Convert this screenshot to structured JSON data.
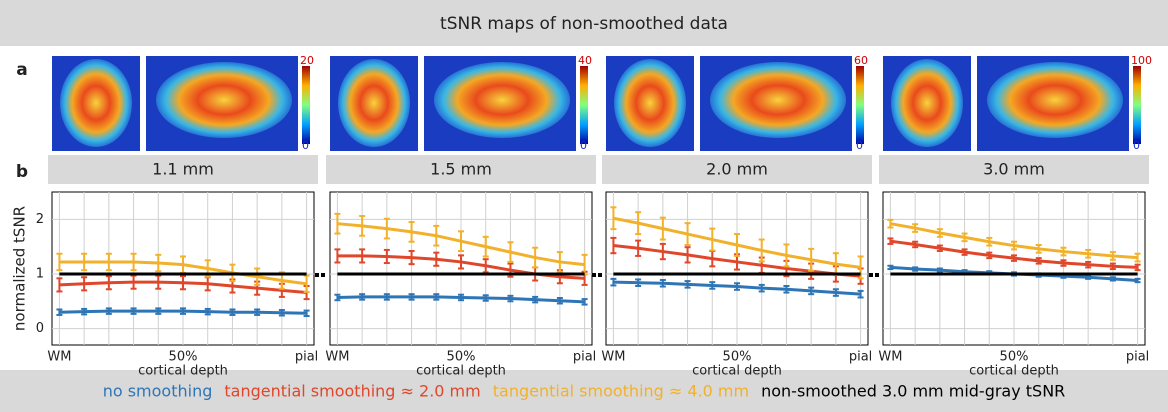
{
  "header": "tSNR maps of non-smoothed data",
  "panel_labels": [
    "a",
    "b"
  ],
  "colorbars": [
    {
      "max": 20,
      "min": 0
    },
    {
      "max": 40,
      "min": 0
    },
    {
      "max": 60,
      "min": 0
    },
    {
      "max": 100,
      "min": 0
    }
  ],
  "legend": [
    {
      "name": "no smoothing",
      "color": "#2e75b6"
    },
    {
      "name": "tangential smoothing ≈ 2.0 mm",
      "color": "#e0472a"
    },
    {
      "name": "tangential smoothing ≈ 4.0 mm",
      "color": "#f2b12a"
    },
    {
      "name": "non-smoothed 3.0 mm mid-gray tSNR",
      "color": "#000000"
    }
  ],
  "chart_data": [
    {
      "type": "line",
      "title": "1.1 mm",
      "ylabel": "normalized tSNR",
      "xlabel": "cortical depth",
      "show_ytick_labels": true,
      "x": [
        0,
        10,
        20,
        30,
        40,
        50,
        60,
        70,
        80,
        90,
        100
      ],
      "xlim": [
        -3,
        103
      ],
      "xticks": [
        {
          "value": 0,
          "label": "WM"
        },
        {
          "value": 50,
          "label": "50%"
        },
        {
          "value": 100,
          "label": "pial"
        }
      ],
      "ylim": [
        -0.3,
        2.5
      ],
      "yticks": [
        0,
        1,
        2
      ],
      "grid": true,
      "series": [
        {
          "values": [
            0.3,
            0.31,
            0.32,
            0.32,
            0.32,
            0.32,
            0.31,
            0.3,
            0.3,
            0.29,
            0.28
          ],
          "errors": [
            0.05,
            0.05,
            0.05,
            0.05,
            0.05,
            0.05,
            0.05,
            0.05,
            0.05,
            0.05,
            0.05
          ]
        },
        {
          "values": [
            0.8,
            0.82,
            0.84,
            0.85,
            0.85,
            0.84,
            0.82,
            0.78,
            0.74,
            0.7,
            0.66
          ],
          "errors": [
            0.12,
            0.12,
            0.12,
            0.12,
            0.12,
            0.12,
            0.12,
            0.12,
            0.12,
            0.12,
            0.12
          ]
        },
        {
          "values": [
            1.22,
            1.22,
            1.22,
            1.22,
            1.2,
            1.17,
            1.1,
            1.02,
            0.95,
            0.88,
            0.82
          ],
          "errors": [
            0.15,
            0.15,
            0.15,
            0.15,
            0.15,
            0.15,
            0.15,
            0.15,
            0.15,
            0.15,
            0.15
          ]
        },
        {
          "values": [
            1,
            1,
            1,
            1,
            1,
            1,
            1,
            1,
            1,
            1,
            1
          ]
        }
      ]
    },
    {
      "type": "line",
      "title": "1.5 mm",
      "xlabel": "cortical depth",
      "show_ytick_labels": false,
      "x": [
        0,
        10,
        20,
        30,
        40,
        50,
        60,
        70,
        80,
        90,
        100
      ],
      "xlim": [
        -3,
        103
      ],
      "xticks": [
        {
          "value": 0,
          "label": "WM"
        },
        {
          "value": 50,
          "label": "50%"
        },
        {
          "value": 100,
          "label": "pial"
        }
      ],
      "ylim": [
        -0.3,
        2.5
      ],
      "yticks": [
        0,
        1,
        2
      ],
      "grid": true,
      "series": [
        {
          "values": [
            0.57,
            0.58,
            0.58,
            0.58,
            0.58,
            0.57,
            0.56,
            0.55,
            0.53,
            0.51,
            0.49
          ],
          "errors": [
            0.05,
            0.05,
            0.05,
            0.05,
            0.05,
            0.05,
            0.05,
            0.05,
            0.05,
            0.05,
            0.05
          ]
        },
        {
          "values": [
            1.33,
            1.33,
            1.32,
            1.3,
            1.27,
            1.22,
            1.15,
            1.07,
            1.0,
            0.95,
            0.92
          ],
          "errors": [
            0.12,
            0.12,
            0.12,
            0.12,
            0.12,
            0.12,
            0.12,
            0.12,
            0.12,
            0.12,
            0.12
          ]
        },
        {
          "values": [
            1.92,
            1.88,
            1.83,
            1.77,
            1.7,
            1.6,
            1.5,
            1.4,
            1.3,
            1.22,
            1.17
          ],
          "errors": [
            0.18,
            0.18,
            0.18,
            0.18,
            0.18,
            0.18,
            0.18,
            0.18,
            0.18,
            0.18,
            0.18
          ]
        },
        {
          "values": [
            1,
            1,
            1,
            1,
            1,
            1,
            1,
            1,
            1,
            1,
            1
          ]
        }
      ]
    },
    {
      "type": "line",
      "title": "2.0 mm",
      "xlabel": "cortical depth",
      "show_ytick_labels": false,
      "x": [
        0,
        10,
        20,
        30,
        40,
        50,
        60,
        70,
        80,
        90,
        100
      ],
      "xlim": [
        -3,
        103
      ],
      "xticks": [
        {
          "value": 0,
          "label": "WM"
        },
        {
          "value": 50,
          "label": "50%"
        },
        {
          "value": 100,
          "label": "pial"
        }
      ],
      "ylim": [
        -0.3,
        2.5
      ],
      "yticks": [
        0,
        1,
        2
      ],
      "grid": true,
      "series": [
        {
          "values": [
            0.85,
            0.84,
            0.83,
            0.81,
            0.79,
            0.77,
            0.74,
            0.72,
            0.69,
            0.66,
            0.63
          ],
          "errors": [
            0.06,
            0.06,
            0.06,
            0.06,
            0.06,
            0.06,
            0.06,
            0.06,
            0.06,
            0.06,
            0.06
          ]
        },
        {
          "values": [
            1.52,
            1.47,
            1.41,
            1.35,
            1.28,
            1.22,
            1.16,
            1.1,
            1.05,
            1.0,
            0.96
          ],
          "errors": [
            0.14,
            0.14,
            0.14,
            0.14,
            0.14,
            0.14,
            0.14,
            0.14,
            0.14,
            0.14,
            0.14
          ]
        },
        {
          "values": [
            2.02,
            1.93,
            1.83,
            1.73,
            1.63,
            1.53,
            1.43,
            1.34,
            1.26,
            1.18,
            1.12
          ],
          "errors": [
            0.2,
            0.2,
            0.2,
            0.2,
            0.2,
            0.2,
            0.2,
            0.2,
            0.2,
            0.2,
            0.2
          ]
        },
        {
          "values": [
            1,
            1,
            1,
            1,
            1,
            1,
            1,
            1,
            1,
            1,
            1
          ]
        }
      ]
    },
    {
      "type": "line",
      "title": "3.0 mm",
      "xlabel": "cortical depth",
      "show_ytick_labels": false,
      "x": [
        0,
        10,
        20,
        30,
        40,
        50,
        60,
        70,
        80,
        90,
        100
      ],
      "xlim": [
        -3,
        103
      ],
      "xticks": [
        {
          "value": 0,
          "label": "WM"
        },
        {
          "value": 50,
          "label": "50%"
        },
        {
          "value": 100,
          "label": "pial"
        }
      ],
      "ylim": [
        -0.3,
        2.5
      ],
      "yticks": [
        0,
        1,
        2
      ],
      "grid": true,
      "series": [
        {
          "values": [
            1.12,
            1.09,
            1.07,
            1.04,
            1.02,
            1.0,
            0.98,
            0.96,
            0.94,
            0.91,
            0.88
          ],
          "errors": [
            0.03,
            0.03,
            0.03,
            0.03,
            0.03,
            0.03,
            0.03,
            0.03,
            0.03,
            0.03,
            0.03
          ]
        },
        {
          "values": [
            1.6,
            1.54,
            1.47,
            1.4,
            1.34,
            1.29,
            1.24,
            1.2,
            1.17,
            1.14,
            1.12
          ],
          "errors": [
            0.05,
            0.05,
            0.05,
            0.05,
            0.05,
            0.05,
            0.05,
            0.05,
            0.05,
            0.05,
            0.05
          ]
        },
        {
          "values": [
            1.92,
            1.84,
            1.75,
            1.67,
            1.59,
            1.52,
            1.46,
            1.41,
            1.37,
            1.33,
            1.3
          ],
          "errors": [
            0.07,
            0.07,
            0.07,
            0.07,
            0.07,
            0.07,
            0.07,
            0.07,
            0.07,
            0.07,
            0.07
          ]
        },
        {
          "values": [
            1,
            1,
            1,
            1,
            1,
            1,
            1,
            1,
            1,
            1,
            1
          ]
        }
      ]
    }
  ]
}
